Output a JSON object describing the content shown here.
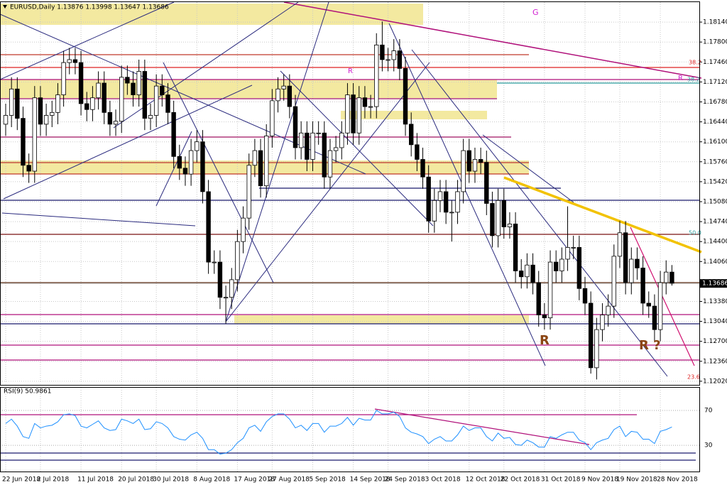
{
  "chart_data": [
    {
      "type": "candlestick",
      "title": "EURUSD,Daily  1.13876 1.13998 1.13647 1.13686",
      "categories": [
        "22 Jun 2018",
        null,
        null,
        null,
        null,
        null,
        "2 Jul 2018",
        null,
        null,
        null,
        null,
        null,
        null,
        "11 Jul 2018",
        null,
        null,
        null,
        null,
        null,
        null,
        "20 Jul 2018",
        null,
        null,
        null,
        null,
        null,
        "30 Jul 2018",
        null,
        null,
        null,
        null,
        null,
        null,
        "8 Aug 2018",
        null,
        null,
        null,
        null,
        null,
        null,
        "17 Aug 2018",
        null,
        null,
        null,
        null,
        null,
        "27 Aug 2018",
        null,
        null,
        null,
        null,
        null,
        null,
        "5 Sep 2018",
        null,
        null,
        null,
        null,
        null,
        null,
        "14 Sep 2018",
        null,
        null,
        null,
        null,
        null,
        "24 Sep 2018",
        null,
        null,
        null,
        null,
        null,
        null,
        "3 Oct 2018",
        null,
        null,
        null,
        null,
        null,
        null,
        "12 Oct 2018",
        null,
        null,
        null,
        null,
        null,
        "22 Oct 2018",
        null,
        null,
        null,
        null,
        null,
        null,
        "31 Oct 2018",
        null,
        null,
        null,
        null,
        null,
        null,
        "9 Nov 2018",
        null,
        null,
        null,
        null,
        null,
        "19 Nov 2018",
        null,
        null,
        null,
        null,
        null,
        null,
        "28 Nov 2018",
        null,
        null
      ],
      "open": [
        1.164,
        1.1655,
        1.17,
        1.165,
        1.157,
        1.156,
        1.1685,
        1.164,
        1.1655,
        1.166,
        1.169,
        1.1745,
        1.175,
        1.1745,
        1.1675,
        1.1665,
        1.1685,
        1.171,
        1.166,
        1.164,
        1.1645,
        1.172,
        1.171,
        1.169,
        1.173,
        1.165,
        1.1655,
        1.1705,
        1.169,
        1.166,
        1.1585,
        1.1565,
        1.1555,
        1.1595,
        1.161,
        1.1525,
        1.1405,
        1.1405,
        1.1345,
        1.1345,
        1.1375,
        1.144,
        1.148,
        1.157,
        1.1595,
        1.1535,
        1.162,
        1.168,
        1.17,
        1.1705,
        1.167,
        1.16,
        1.1625,
        1.158,
        1.1625,
        1.1625,
        1.155,
        1.1595,
        1.16,
        1.1625,
        1.169,
        1.1625,
        1.1685,
        1.167,
        1.167,
        1.1775,
        1.175,
        1.175,
        1.1765,
        1.1735,
        1.164,
        1.1605,
        1.158,
        1.155,
        1.1475,
        1.151,
        1.1525,
        1.149,
        1.149,
        1.1525,
        1.1595,
        1.156,
        1.158,
        1.1575,
        1.1505,
        1.145,
        1.151,
        1.1465,
        1.147,
        1.139,
        1.138,
        1.14,
        1.137,
        1.1315,
        1.131,
        1.1405,
        1.139,
        1.141,
        1.143,
        1.143,
        1.136,
        1.1335,
        1.1225,
        1.129,
        1.1315,
        1.133,
        1.1415,
        1.1455,
        1.137,
        1.141,
        1.1395,
        1.1335,
        1.133,
        1.129,
        1.137,
        1.1388
      ],
      "high": [
        1.1675,
        1.172,
        1.172,
        1.167,
        1.159,
        1.1705,
        1.1705,
        1.1675,
        1.168,
        1.171,
        1.1765,
        1.177,
        1.177,
        1.1765,
        1.1695,
        1.1705,
        1.173,
        1.173,
        1.168,
        1.1665,
        1.174,
        1.174,
        1.173,
        1.175,
        1.175,
        1.1675,
        1.1725,
        1.1725,
        1.171,
        1.168,
        1.1605,
        1.1585,
        1.1615,
        1.163,
        1.163,
        1.1545,
        1.1425,
        1.1425,
        1.1365,
        1.1395,
        1.146,
        1.15,
        1.159,
        1.1615,
        1.1615,
        1.164,
        1.17,
        1.172,
        1.1725,
        1.1725,
        1.169,
        1.1645,
        1.1645,
        1.1645,
        1.1645,
        1.1645,
        1.1615,
        1.162,
        1.1645,
        1.171,
        1.171,
        1.1705,
        1.1705,
        1.169,
        1.1795,
        1.1815,
        1.177,
        1.1785,
        1.1785,
        1.1755,
        1.166,
        1.1625,
        1.16,
        1.157,
        1.153,
        1.1545,
        1.1545,
        1.151,
        1.1545,
        1.1615,
        1.1615,
        1.16,
        1.16,
        1.1595,
        1.1525,
        1.153,
        1.153,
        1.149,
        1.149,
        1.141,
        1.142,
        1.142,
        1.139,
        1.1335,
        1.1425,
        1.1425,
        1.143,
        1.15,
        1.145,
        1.145,
        1.138,
        1.1355,
        1.131,
        1.1335,
        1.135,
        1.1435,
        1.1475,
        1.1475,
        1.143,
        1.143,
        1.1415,
        1.1355,
        1.135,
        1.139,
        1.1408,
        1.14
      ],
      "low": [
        1.162,
        1.1635,
        1.163,
        1.155,
        1.154,
        1.154,
        1.162,
        1.162,
        1.1635,
        1.164,
        1.167,
        1.1725,
        1.1725,
        1.1655,
        1.1645,
        1.1645,
        1.1665,
        1.164,
        1.162,
        1.162,
        1.1625,
        1.169,
        1.167,
        1.167,
        1.163,
        1.163,
        1.1635,
        1.167,
        1.164,
        1.1565,
        1.1545,
        1.1535,
        1.1535,
        1.1575,
        1.1505,
        1.1385,
        1.1385,
        1.1325,
        1.13,
        1.1325,
        1.1355,
        1.142,
        1.146,
        1.155,
        1.1515,
        1.1515,
        1.16,
        1.166,
        1.168,
        1.165,
        1.158,
        1.158,
        1.156,
        1.156,
        1.1605,
        1.153,
        1.153,
        1.1575,
        1.158,
        1.1605,
        1.1605,
        1.1605,
        1.165,
        1.165,
        1.165,
        1.173,
        1.173,
        1.173,
        1.1715,
        1.162,
        1.1585,
        1.156,
        1.153,
        1.1455,
        1.1455,
        1.149,
        1.147,
        1.144,
        1.147,
        1.1505,
        1.154,
        1.154,
        1.1555,
        1.1485,
        1.143,
        1.143,
        1.1445,
        1.1445,
        1.137,
        1.136,
        1.136,
        1.135,
        1.1295,
        1.129,
        1.129,
        1.137,
        1.137,
        1.139,
        1.141,
        1.134,
        1.1315,
        1.1215,
        1.1205,
        1.127,
        1.1295,
        1.131,
        1.1395,
        1.135,
        1.135,
        1.1375,
        1.1315,
        1.131,
        1.127,
        1.127,
        1.135,
        1.1365
      ],
      "close": [
        1.1655,
        1.17,
        1.165,
        1.157,
        1.156,
        1.1685,
        1.164,
        1.1655,
        1.166,
        1.169,
        1.1745,
        1.175,
        1.1745,
        1.1675,
        1.1665,
        1.1685,
        1.171,
        1.166,
        1.164,
        1.1645,
        1.172,
        1.171,
        1.169,
        1.173,
        1.165,
        1.1655,
        1.1705,
        1.169,
        1.166,
        1.1585,
        1.1565,
        1.1555,
        1.1595,
        1.161,
        1.1525,
        1.1405,
        1.1405,
        1.1345,
        1.1345,
        1.1375,
        1.144,
        1.148,
        1.157,
        1.1595,
        1.1535,
        1.162,
        1.168,
        1.17,
        1.1705,
        1.167,
        1.16,
        1.1625,
        1.158,
        1.1625,
        1.1625,
        1.155,
        1.1595,
        1.16,
        1.1625,
        1.169,
        1.1625,
        1.1685,
        1.167,
        1.167,
        1.1775,
        1.175,
        1.175,
        1.1765,
        1.1735,
        1.164,
        1.1605,
        1.158,
        1.155,
        1.1475,
        1.151,
        1.1525,
        1.149,
        1.149,
        1.1525,
        1.1595,
        1.156,
        1.158,
        1.1575,
        1.1505,
        1.145,
        1.151,
        1.1465,
        1.147,
        1.139,
        1.138,
        1.14,
        1.137,
        1.1315,
        1.131,
        1.1405,
        1.139,
        1.141,
        1.143,
        1.143,
        1.136,
        1.1335,
        1.1225,
        1.129,
        1.1315,
        1.133,
        1.1415,
        1.1455,
        1.137,
        1.141,
        1.1395,
        1.1335,
        1.133,
        1.129,
        1.137,
        1.1388,
        1.1369
      ],
      "ylim": [
        1.1197,
        1.1848
      ],
      "yticks": [
        {
          "value": 1.1814,
          "label": "1.18140"
        },
        {
          "value": 1.178,
          "label": "1.17800"
        },
        {
          "value": 1.1746,
          "label": "1.17460"
        },
        {
          "value": 1.1712,
          "label": "1.17120"
        },
        {
          "value": 1.1678,
          "label": "1.16780"
        },
        {
          "value": 1.1644,
          "label": "1.16440"
        },
        {
          "value": 1.161,
          "label": "1.16100"
        },
        {
          "value": 1.1576,
          "label": "1.15760"
        },
        {
          "value": 1.1542,
          "label": "1.15420"
        },
        {
          "value": 1.1508,
          "label": "1.15080"
        },
        {
          "value": 1.1474,
          "label": "1.14740"
        },
        {
          "value": 1.144,
          "label": "1.14400"
        },
        {
          "value": 1.1406,
          "label": "1.14060"
        },
        {
          "value": 1.1338,
          "label": "1.13380"
        },
        {
          "value": 1.1304,
          "label": "1.13040"
        },
        {
          "value": 1.127,
          "label": "1.12700"
        },
        {
          "value": 1.1236,
          "label": "1.12360"
        },
        {
          "value": 1.1202,
          "label": "1.12020"
        }
      ],
      "current_price": {
        "value": 1.13686,
        "label": "1.13686"
      },
      "annotations": [
        "G",
        "R",
        "R",
        "R ?",
        "38.2",
        "R",
        "38.2",
        "50.0",
        "23.6"
      ],
      "grid": true
    },
    {
      "type": "line",
      "title": "RSI(9) 50.9861",
      "color": "#1e90ff",
      "values": [
        55,
        60,
        52,
        40,
        38,
        55,
        50,
        52,
        53,
        57,
        65,
        66,
        64,
        52,
        50,
        54,
        58,
        50,
        47,
        48,
        60,
        58,
        55,
        60,
        48,
        49,
        57,
        55,
        50,
        40,
        37,
        36,
        42,
        45,
        38,
        25,
        25,
        20,
        21,
        25,
        33,
        38,
        50,
        53,
        46,
        57,
        63,
        66,
        66,
        60,
        50,
        53,
        47,
        55,
        55,
        45,
        52,
        52,
        55,
        62,
        53,
        61,
        59,
        59,
        70,
        66,
        66,
        68,
        63,
        50,
        45,
        43,
        40,
        32,
        37,
        40,
        35,
        35,
        42,
        52,
        47,
        50,
        50,
        40,
        35,
        44,
        38,
        39,
        31,
        30,
        36,
        33,
        28,
        28,
        40,
        38,
        42,
        45,
        45,
        36,
        33,
        25,
        33,
        36,
        38,
        48,
        52,
        40,
        46,
        45,
        37,
        37,
        32,
        46,
        48,
        51
      ],
      "ylim": [
        0,
        96
      ],
      "yticks": [
        70,
        30
      ]
    }
  ]
}
